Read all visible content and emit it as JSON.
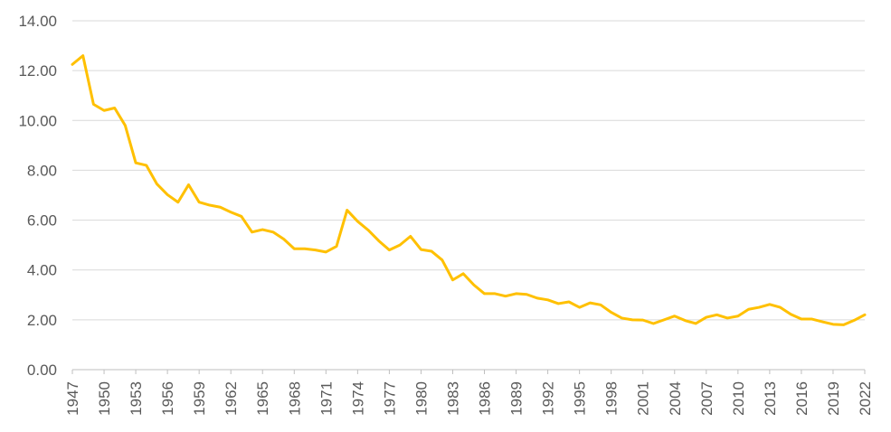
{
  "chart_data": {
    "type": "line",
    "title": "",
    "xlabel": "",
    "ylabel": "",
    "ylim": [
      0,
      14
    ],
    "y_ticks": [
      "0.00",
      "2.00",
      "4.00",
      "6.00",
      "8.00",
      "10.00",
      "12.00",
      "14.00"
    ],
    "x_ticks": [
      "1947",
      "1950",
      "1953",
      "1956",
      "1959",
      "1962",
      "1965",
      "1968",
      "1971",
      "1974",
      "1977",
      "1980",
      "1983",
      "1986",
      "1989",
      "1992",
      "1995",
      "1998",
      "2001",
      "2004",
      "2007",
      "2010",
      "2013",
      "2016",
      "2019",
      "2022"
    ],
    "grid": true,
    "legend": "none",
    "series": [
      {
        "color": "#FFC000",
        "x": [
          1947,
          1948,
          1949,
          1950,
          1951,
          1952,
          1953,
          1954,
          1955,
          1956,
          1957,
          1958,
          1959,
          1960,
          1961,
          1962,
          1963,
          1964,
          1965,
          1966,
          1967,
          1968,
          1969,
          1970,
          1971,
          1972,
          1973,
          1974,
          1975,
          1976,
          1977,
          1978,
          1979,
          1980,
          1981,
          1982,
          1983,
          1984,
          1985,
          1986,
          1987,
          1988,
          1989,
          1990,
          1991,
          1992,
          1993,
          1994,
          1995,
          1996,
          1997,
          1998,
          1999,
          2000,
          2001,
          2002,
          2003,
          2004,
          2005,
          2006,
          2007,
          2008,
          2009,
          2010,
          2011,
          2012,
          2013,
          2014,
          2015,
          2016,
          2017,
          2018,
          2019,
          2020,
          2021,
          2022
        ],
        "values": [
          12.25,
          12.6,
          10.65,
          10.4,
          10.5,
          9.8,
          8.3,
          8.2,
          7.45,
          7.02,
          6.72,
          7.42,
          6.72,
          6.6,
          6.52,
          6.32,
          6.15,
          5.52,
          5.62,
          5.52,
          5.24,
          4.85,
          4.85,
          4.8,
          4.72,
          4.95,
          6.4,
          5.95,
          5.6,
          5.17,
          4.8,
          5.0,
          5.35,
          4.82,
          4.75,
          4.4,
          3.6,
          3.85,
          3.4,
          3.05,
          3.05,
          2.95,
          3.05,
          3.02,
          2.87,
          2.8,
          2.65,
          2.72,
          2.5,
          2.68,
          2.6,
          2.3,
          2.07,
          2.0,
          1.99,
          1.85,
          2.0,
          2.15,
          1.97,
          1.85,
          2.1,
          2.2,
          2.07,
          2.15,
          2.42,
          2.5,
          2.62,
          2.5,
          2.22,
          2.03,
          2.03,
          1.92,
          1.82,
          1.8,
          1.98,
          2.2
        ]
      }
    ]
  }
}
